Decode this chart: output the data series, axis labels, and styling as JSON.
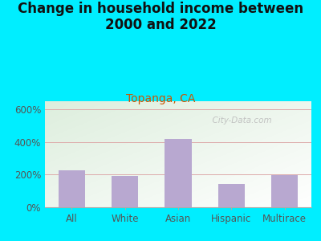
{
  "title": "Change in household income between\n2000 and 2022",
  "subtitle": "Topanga, CA",
  "categories": [
    "All",
    "White",
    "Asian",
    "Hispanic",
    "Multirace"
  ],
  "values": [
    225,
    190,
    420,
    145,
    195
  ],
  "bar_color": "#b8a8d0",
  "title_fontsize": 12,
  "subtitle_fontsize": 10,
  "subtitle_color": "#cc5500",
  "tick_label_fontsize": 8.5,
  "ytick_labels": [
    "0%",
    "200%",
    "400%",
    "600%"
  ],
  "ytick_values": [
    0,
    200,
    400,
    600
  ],
  "ylim": [
    0,
    650
  ],
  "background_outer": "#00eeff",
  "background_plot_top_left": "#ddeedd",
  "background_plot_bottom_right": "#ffffff",
  "gridline_color": "#ddaaaa",
  "watermark_text": "  City-Data.com",
  "watermark_color": "#bbbbbb",
  "title_color": "#111111"
}
